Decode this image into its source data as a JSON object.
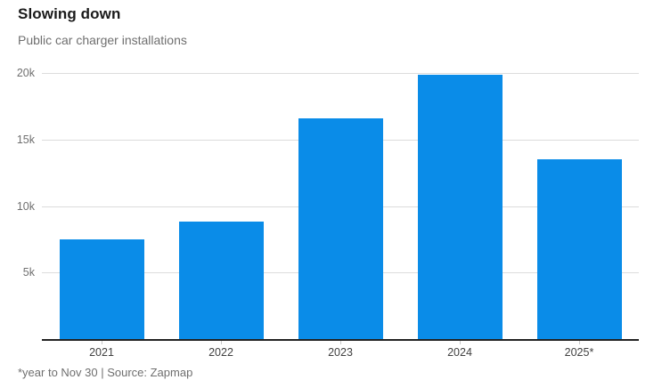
{
  "header": {
    "title": "Slowing down",
    "subtitle": "Public car charger installations"
  },
  "footer": {
    "note": "*year to Nov 30 | Source: Zapmap"
  },
  "colors": {
    "bar": "#0a8ce8",
    "gridline": "#dcdcdc",
    "axis_line": "#222222",
    "title_text": "#1a1a1a",
    "muted_text": "#6f6f6f",
    "x_label_text": "#404040"
  },
  "chart_data": {
    "type": "bar",
    "title": "Slowing down",
    "subtitle": "Public car charger installations",
    "categories": [
      "2021",
      "2022",
      "2023",
      "2024",
      "2025*"
    ],
    "values": [
      7500,
      8800,
      16600,
      19900,
      13500
    ],
    "xlabel": "",
    "ylabel": "",
    "ylim": [
      0,
      20000
    ],
    "yticks": [
      5000,
      10000,
      15000,
      20000
    ],
    "ytick_labels": [
      "5k",
      "10k",
      "15k",
      "20k"
    ],
    "grid": "horizontal",
    "legend": "none",
    "bar_color": "#0a8ce8",
    "annotation": "*year to Nov 30 | Source: Zapmap"
  }
}
